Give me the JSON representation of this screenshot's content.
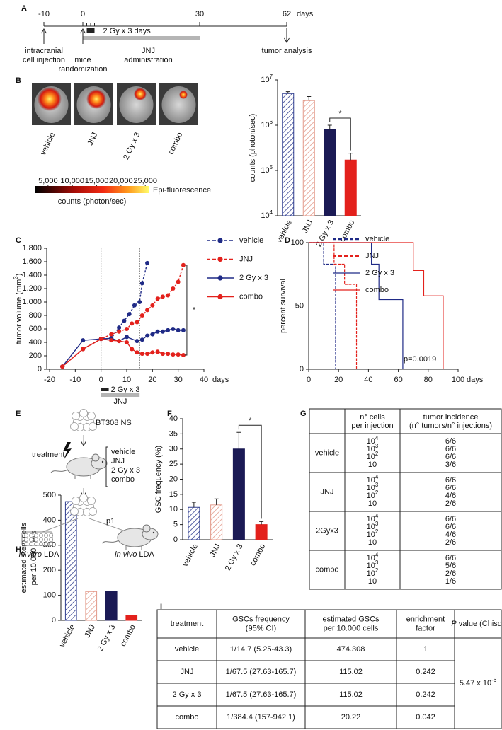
{
  "panel_labels": [
    "A",
    "B",
    "C",
    "D",
    "E",
    "F",
    "G",
    "H",
    "I"
  ],
  "timeline": {
    "unit": "days",
    "ticks": [
      -10,
      0,
      30,
      62
    ],
    "irradiation": {
      "label": "2 Gy x 3 days",
      "days": [
        1,
        2,
        3
      ]
    },
    "jnj": {
      "range": [
        0,
        30
      ],
      "lines": [
        "JNJ",
        "administration"
      ]
    },
    "events": [
      {
        "day": -10,
        "direction": "up",
        "lines": [
          "intracranial",
          "cell injection"
        ]
      },
      {
        "day": 0,
        "direction": "up",
        "lines": [
          "mice",
          "randomization"
        ]
      },
      {
        "day": 62,
        "direction": "down",
        "lines": [
          "tumor analysis"
        ]
      }
    ]
  },
  "imaging": {
    "labels": [
      "vehicle",
      "JNJ",
      "2 Gy x 3",
      "combo"
    ],
    "colorbar": {
      "lim": [
        2400,
        25700
      ],
      "ticks": [
        {
          "value": 5000,
          "label": "5,000"
        },
        {
          "value": 10000,
          "label": "10,000"
        },
        {
          "value": 15000,
          "label": "15,000"
        },
        {
          "value": 20000,
          "label": "20,000"
        },
        {
          "value": 25000,
          "label": "25,000"
        }
      ],
      "label": "Epi-fluorescence",
      "unit_label": "counts (photon/sec)"
    }
  },
  "chart_data": [
    {
      "type": "bar",
      "ylabel": "counts (photon/sec)",
      "categories": [
        "vehicle",
        "JNJ",
        "2 Gy x 3",
        "combo"
      ],
      "values": [
        5000000,
        3500000,
        800000,
        170000
      ],
      "errors": [
        500000,
        800000,
        200000,
        70000
      ],
      "colors": [
        "#2f3d8f",
        "#e39a8a",
        "#1b1a55",
        "#e3211c"
      ],
      "hatched": [
        true,
        true,
        false,
        false
      ],
      "log_scale": true,
      "ylim": [
        10000,
        10000000
      ],
      "yticks": [
        {
          "value": 10000,
          "label": [
            {
              "text": "10"
            },
            {
              "text": "4",
              "sup": true
            }
          ]
        },
        {
          "value": 100000,
          "label": [
            {
              "text": "10"
            },
            {
              "text": "5",
              "sup": true
            }
          ]
        },
        {
          "value": 1000000,
          "label": [
            {
              "text": "10"
            },
            {
              "text": "6",
              "sup": true
            }
          ]
        },
        {
          "value": 10000000,
          "label": [
            {
              "text": "10"
            },
            {
              "text": "7",
              "sup": true
            }
          ]
        }
      ],
      "bracket": [
        2,
        3
      ],
      "annotation": "*"
    },
    {
      "type": "line",
      "xlabel": "days",
      "ylabel": [
        {
          "text": "tumor volume (mm"
        },
        {
          "text": "3",
          "sup": true
        },
        {
          "text": ")"
        }
      ],
      "xlim": [
        -20,
        40
      ],
      "xticks": [
        -20,
        -10,
        0,
        10,
        20,
        30,
        40
      ],
      "ylim": [
        0,
        1800
      ],
      "yticks": [
        0,
        200,
        400,
        600,
        800,
        {
          "value": 1000,
          "label": "1.000"
        },
        {
          "value": 1200,
          "label": "1.200"
        },
        {
          "value": 1400,
          "label": "1.400"
        },
        {
          "value": 1600,
          "label": "1.600"
        },
        {
          "value": 1800,
          "label": "1.800"
        }
      ],
      "series": [
        {
          "name": "vehicle",
          "color": "#1f2a86",
          "dashed": true,
          "x": [
            -15,
            -7,
            0,
            4,
            7,
            9,
            11,
            13,
            15,
            16,
            18
          ],
          "values": [
            40,
            300,
            450,
            460,
            620,
            720,
            820,
            950,
            1000,
            1280,
            1580
          ]
        },
        {
          "name": "JNJ",
          "color": "#e3211c",
          "dashed": true,
          "x": [
            -15,
            -7,
            0,
            4,
            7,
            10,
            12,
            14,
            16,
            18,
            20,
            22,
            24,
            26,
            28,
            30,
            32
          ],
          "values": [
            40,
            300,
            450,
            520,
            560,
            600,
            680,
            700,
            800,
            880,
            950,
            1050,
            1080,
            1100,
            1200,
            1300,
            1550
          ]
        },
        {
          "name": "2 Gy x 3",
          "color": "#1f2a86",
          "dashed": false,
          "x": [
            -15,
            -7,
            0,
            4,
            7,
            10,
            14,
            16,
            18,
            20,
            22,
            24,
            26,
            28,
            30,
            32
          ],
          "values": [
            40,
            430,
            450,
            460,
            420,
            480,
            420,
            440,
            500,
            520,
            560,
            560,
            580,
            600,
            580,
            580
          ]
        },
        {
          "name": "combo",
          "color": "#e3211c",
          "dashed": false,
          "x": [
            -15,
            -7,
            0,
            4,
            7,
            10,
            12,
            14,
            16,
            18,
            20,
            22,
            24,
            26,
            28,
            30,
            32
          ],
          "values": [
            40,
            300,
            450,
            430,
            420,
            400,
            300,
            250,
            230,
            230,
            250,
            260,
            230,
            230,
            220,
            220,
            210
          ]
        }
      ],
      "treatment_lines": [
        0,
        15
      ],
      "treatment_bars": [
        {
          "label": "2 Gy x 3",
          "range": [
            0,
            3
          ]
        },
        {
          "label": "JNJ",
          "range": [
            0,
            15
          ]
        }
      ],
      "bracket": [
        1,
        3
      ],
      "annotation": "*"
    },
    {
      "type": "step",
      "xlabel": "days",
      "ylabel": "percent survival",
      "xlim": [
        0,
        100
      ],
      "xticks": [
        0,
        20,
        40,
        60,
        80,
        100
      ],
      "ylim": [
        0,
        100
      ],
      "yticks": [
        0,
        50,
        100
      ],
      "series": [
        {
          "name": "vehicle",
          "color": "#1f2a86",
          "dashed": true,
          "x": [
            0,
            10,
            18
          ],
          "values": [
            100,
            83,
            0
          ]
        },
        {
          "name": "JNJ",
          "color": "#e3211c",
          "dashed": true,
          "x": [
            0,
            17,
            24,
            32
          ],
          "values": [
            100,
            83,
            67,
            0
          ]
        },
        {
          "name": "2 Gy x 3",
          "color": "#1f2a86",
          "dashed": false,
          "x": [
            0,
            42,
            47,
            63
          ],
          "values": [
            100,
            83,
            55,
            0
          ]
        },
        {
          "name": "combo",
          "color": "#e3211c",
          "dashed": false,
          "x": [
            0,
            70,
            77,
            90
          ],
          "values": [
            100,
            78,
            58,
            0
          ]
        }
      ],
      "annotation": "p=0.0019"
    },
    {
      "type": "bar",
      "ylabel": "GSC frequency (%)",
      "categories": [
        "vehicle",
        "JNJ",
        "2 Gy x 3",
        "combo"
      ],
      "values": [
        10.7,
        11.5,
        30,
        5
      ],
      "errors": [
        1.7,
        2,
        5.5,
        1
      ],
      "colors": [
        "#2f3d8f",
        "#e39a8a",
        "#1b1a55",
        "#e3211c"
      ],
      "hatched": [
        true,
        true,
        false,
        false
      ],
      "ylim": [
        0,
        40
      ],
      "yticks": [
        0,
        5,
        10,
        15,
        20,
        25,
        30,
        35,
        40
      ],
      "bracket": [
        2,
        3
      ],
      "annotation": "*"
    },
    {
      "type": "bar",
      "ylabel": [
        "estimated stem cells",
        "per 10,000 cells"
      ],
      "categories": [
        "vehicle",
        "JNJ",
        "2 Gy x 3",
        "combo"
      ],
      "values": [
        474.308,
        115.02,
        115.02,
        20.22
      ],
      "colors": [
        "#2f3d8f",
        "#e39a8a",
        "#1b1a55",
        "#e3211c"
      ],
      "hatched": [
        true,
        true,
        false,
        false
      ],
      "ylim": [
        0,
        500
      ],
      "yticks": [
        0,
        100,
        200,
        300,
        400,
        500
      ]
    }
  ],
  "diagram": {
    "cells_label": "BT308 NS",
    "treatment_label": "treatment",
    "treatments": [
      "vehicle",
      "JNJ",
      "2 Gy x 3",
      "combo"
    ],
    "passage": "p1",
    "in_vitro": [
      {
        "text": "in vitro",
        "italic": true
      },
      {
        "text": " LDA"
      }
    ],
    "in_vivo": [
      {
        "text": "in vivo",
        "italic": true
      },
      {
        "text": " LDA"
      }
    ]
  },
  "incidence_table": {
    "header": [
      [
        "n° cells",
        "per injection"
      ],
      [
        "tumor incidence",
        "(n° tumors/n° injections)"
      ]
    ],
    "groups": [
      {
        "treatment": "vehicle",
        "cells": [
          [
            {
              "text": "10"
            },
            {
              "text": "4",
              "sup": true
            }
          ],
          [
            {
              "text": "10"
            },
            {
              "text": "3",
              "sup": true
            }
          ],
          [
            {
              "text": "10"
            },
            {
              "text": "2",
              "sup": true
            }
          ],
          "10"
        ],
        "incidence": [
          "6/6",
          "6/6",
          "6/6",
          "3/6"
        ]
      },
      {
        "treatment": "JNJ",
        "cells": [
          [
            {
              "text": "10"
            },
            {
              "text": "4",
              "sup": true
            }
          ],
          [
            {
              "text": "10"
            },
            {
              "text": "3",
              "sup": true
            }
          ],
          [
            {
              "text": "10"
            },
            {
              "text": "2",
              "sup": true
            }
          ],
          "10"
        ],
        "incidence": [
          "6/6",
          "6/6",
          "4/6",
          "2/6"
        ]
      },
      {
        "treatment": "2Gyx3",
        "cells": [
          [
            {
              "text": "10"
            },
            {
              "text": "4",
              "sup": true
            }
          ],
          [
            {
              "text": "10"
            },
            {
              "text": "3",
              "sup": true
            }
          ],
          [
            {
              "text": "10"
            },
            {
              "text": "2",
              "sup": true
            }
          ],
          "10"
        ],
        "incidence": [
          "6/6",
          "6/6",
          "4/6",
          "2/6"
        ]
      },
      {
        "treatment": "combo",
        "cells": [
          [
            {
              "text": "10"
            },
            {
              "text": "4",
              "sup": true
            }
          ],
          [
            {
              "text": "10"
            },
            {
              "text": "3",
              "sup": true
            }
          ],
          [
            {
              "text": "10"
            },
            {
              "text": "2",
              "sup": true
            }
          ],
          "10"
        ],
        "incidence": [
          "6/6",
          "5/6",
          "2/6",
          "1/6"
        ]
      }
    ]
  },
  "frequency_table": {
    "header": [
      [
        "treatment"
      ],
      [
        "GSCs frequency",
        "(95% CI)"
      ],
      [
        "estimated GSCs",
        "per 10.000 cells"
      ],
      [
        "enrichment",
        "factor"
      ],
      [
        [
          {
            "text": "P",
            "italic": true
          },
          {
            "text": " value (Chisq)"
          }
        ]
      ]
    ],
    "rows": [
      [
        "vehicle",
        "1/14.7 (5.25-43.3)",
        "474.308",
        "1"
      ],
      [
        "JNJ",
        "1/67.5 (27.63-165.7)",
        "115.02",
        "0.242"
      ],
      [
        "2 Gy x 3",
        "1/67.5 (27.63-165.7)",
        "115.02",
        "0.242"
      ],
      [
        "combo",
        "1/384.4 (157-942.1)",
        "20.22",
        "0.042"
      ]
    ],
    "p_value": [
      {
        "text": "5.47 x 10"
      },
      {
        "text": "-6",
        "sup": true
      }
    ]
  }
}
